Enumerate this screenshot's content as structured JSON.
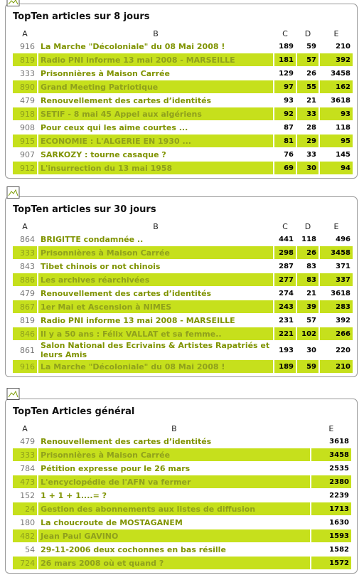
{
  "panels": [
    {
      "title": "TopTen articles sur 8 jours",
      "headers": [
        "A",
        "B",
        "C",
        "D",
        "E"
      ],
      "rows": [
        [
          916,
          "La Marche \"Décoloniale\" du 08 Mai 2008 !",
          189,
          59,
          210
        ],
        [
          819,
          "Radio PNI informe 13 mai 2008 - MARSEILLE",
          181,
          57,
          392
        ],
        [
          333,
          "Prisonnières à Maison Carrée",
          129,
          26,
          3458
        ],
        [
          890,
          "Grand Meeting Patriotique",
          97,
          55,
          162
        ],
        [
          479,
          "Renouvellement des cartes d’identités",
          93,
          21,
          3618
        ],
        [
          918,
          "SETIF - 8 mai 45 Appel aux algériens",
          92,
          33,
          93
        ],
        [
          908,
          "Pour ceux qui les aime courtes ...",
          87,
          28,
          118
        ],
        [
          915,
          "ECONOMIE : L'ALGERIE EN 1930 ...",
          81,
          29,
          95
        ],
        [
          907,
          "SARKOZY : tourne casaque ?",
          76,
          33,
          145
        ],
        [
          912,
          "L'insurrection du 13 mai 1958",
          69,
          30,
          94
        ]
      ]
    },
    {
      "title": "TopTen articles sur 30 jours",
      "headers": [
        "A",
        "B",
        "C",
        "D",
        "E"
      ],
      "rows": [
        [
          864,
          "BRIGITTE condamnée ..",
          441,
          118,
          496
        ],
        [
          333,
          "Prisonnières à Maison Carrée",
          298,
          26,
          3458
        ],
        [
          843,
          "Tibet chinois or not chinois",
          287,
          83,
          371
        ],
        [
          886,
          "Les archives réarchivées",
          277,
          83,
          337
        ],
        [
          479,
          "Renouvellement des cartes d’identités",
          274,
          21,
          3618
        ],
        [
          867,
          "1er Mai et Ascension à NIMES",
          243,
          39,
          283
        ],
        [
          819,
          "Radio PNI informe 13 mai 2008 - MARSEILLE",
          231,
          57,
          392
        ],
        [
          846,
          "Il y a 50 ans : Félix VALLAT et sa femme..",
          221,
          102,
          266
        ],
        [
          861,
          "Salon National des Ecrivains & Artistes Rapatriés et leurs Amis",
          193,
          30,
          220
        ],
        [
          916,
          "La Marche \"Décoloniale\" du 08 Mai 2008 !",
          189,
          59,
          210
        ]
      ]
    },
    {
      "title": "TopTen Articles général",
      "headers": [
        "A",
        "B",
        "E"
      ],
      "rows": [
        [
          479,
          "Renouvellement des cartes d’identités",
          3618
        ],
        [
          333,
          "Prisonnières à Maison Carrée",
          3458
        ],
        [
          784,
          "Pétition expresse pour le 26 mars",
          2535
        ],
        [
          473,
          "L'encyclopédie de l'AFN va fermer",
          2380
        ],
        [
          152,
          "1 + 1 + 1....= ?",
          2239
        ],
        [
          24,
          "Gestion des abonnements aux listes de diffusion",
          1713
        ],
        [
          180,
          "La choucroute de MOSTAGANEM",
          1630
        ],
        [
          482,
          "Jean Paul GAVINO",
          1593
        ],
        [
          54,
          "29-11-2006 deux cochonnes en bas résille",
          1582
        ],
        [
          724,
          "26 mars 2008 où et quand ?",
          1572
        ]
      ]
    }
  ]
}
